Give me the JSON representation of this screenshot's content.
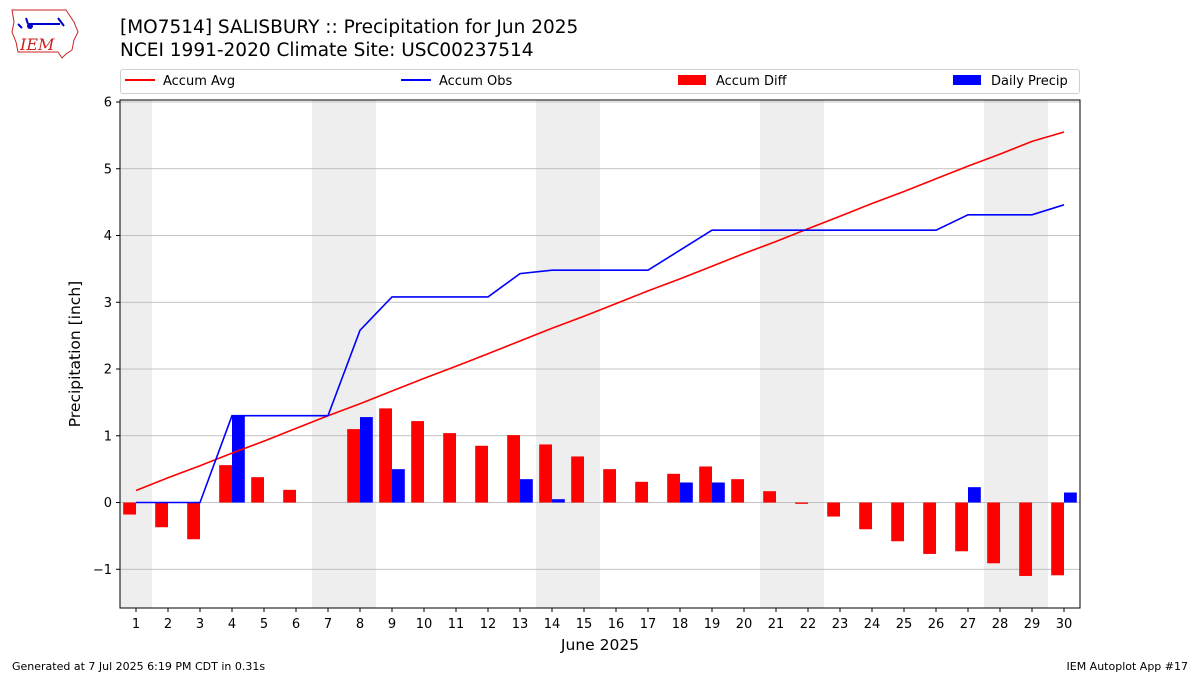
{
  "header": {
    "title_line1": "[MO7514] SALISBURY :: Precipitation for Jun 2025",
    "title_line2": "NCEI 1991-2020 Climate Site: USC00237514"
  },
  "logo": {
    "text": "IEM",
    "icon": "iowa-state-logo-icon"
  },
  "footer": {
    "left": "Generated at 7 Jul 2025 6:19 PM CDT in 0.31s",
    "right": "IEM Autoplot App #17"
  },
  "legend": {
    "accum_avg": "Accum Avg",
    "accum_obs": "Accum Obs",
    "accum_diff": "Accum Diff",
    "daily_precip": "Daily Precip"
  },
  "colors": {
    "avg": "#ff0000",
    "obs": "#0000ff",
    "diff": "#ff0000",
    "precip": "#0000ff",
    "weekend_shade": "#eeeeee",
    "grid": "#b0b0b0"
  },
  "chart_data": {
    "type": "bar",
    "xlabel": "June 2025",
    "ylabel": "Precipitation [inch]",
    "xlim": [
      0.5,
      30.5
    ],
    "ylim": [
      -1.58,
      6.03
    ],
    "yticks": [
      -1,
      0,
      1,
      2,
      3,
      4,
      5,
      6
    ],
    "ytick_labels": [
      "−1",
      "0",
      "1",
      "2",
      "3",
      "4",
      "5",
      "6"
    ],
    "categories": [
      "1",
      "2",
      "3",
      "4",
      "5",
      "6",
      "7",
      "8",
      "9",
      "10",
      "11",
      "12",
      "13",
      "14",
      "15",
      "16",
      "17",
      "18",
      "19",
      "20",
      "21",
      "22",
      "23",
      "24",
      "25",
      "26",
      "27",
      "28",
      "29",
      "30"
    ],
    "grid": "horizontal",
    "legend_position": "top",
    "weekend_days": [
      1,
      7,
      8,
      14,
      15,
      21,
      22,
      28,
      29
    ],
    "series": [
      {
        "name": "Accum Avg",
        "kind": "line",
        "values": [
          0.18,
          0.37,
          0.55,
          0.74,
          0.92,
          1.11,
          1.3,
          1.48,
          1.67,
          1.86,
          2.04,
          2.23,
          2.42,
          2.61,
          2.79,
          2.98,
          3.17,
          3.35,
          3.54,
          3.73,
          3.91,
          4.1,
          4.29,
          4.48,
          4.66,
          4.85,
          5.04,
          5.22,
          5.41,
          5.55
        ]
      },
      {
        "name": "Accum Obs",
        "kind": "line",
        "values": [
          0.0,
          0.0,
          0.0,
          1.3,
          1.3,
          1.3,
          1.3,
          2.58,
          3.08,
          3.08,
          3.08,
          3.08,
          3.43,
          3.48,
          3.48,
          3.48,
          3.48,
          3.78,
          4.08,
          4.08,
          4.08,
          4.08,
          4.08,
          4.08,
          4.08,
          4.08,
          4.31,
          4.31,
          4.31,
          4.46
        ]
      },
      {
        "name": "Accum Diff",
        "kind": "bar",
        "values": [
          -0.18,
          -0.37,
          -0.55,
          0.56,
          0.38,
          0.19,
          0.0,
          1.1,
          1.41,
          1.22,
          1.04,
          0.85,
          1.01,
          0.87,
          0.69,
          0.5,
          0.31,
          0.43,
          0.54,
          0.35,
          0.17,
          -0.02,
          -0.21,
          -0.4,
          -0.58,
          -0.77,
          -0.73,
          -0.91,
          -1.1,
          -1.09
        ]
      },
      {
        "name": "Daily Precip",
        "kind": "bar",
        "values": [
          0.0,
          0.0,
          0.0,
          1.3,
          0.0,
          0.0,
          0.0,
          1.28,
          0.5,
          0.0,
          0.0,
          0.0,
          0.35,
          0.05,
          0.0,
          0.0,
          0.0,
          0.3,
          0.3,
          0.0,
          0.0,
          0.0,
          0.0,
          0.0,
          0.0,
          0.0,
          0.23,
          0.0,
          0.0,
          0.15
        ]
      }
    ]
  }
}
